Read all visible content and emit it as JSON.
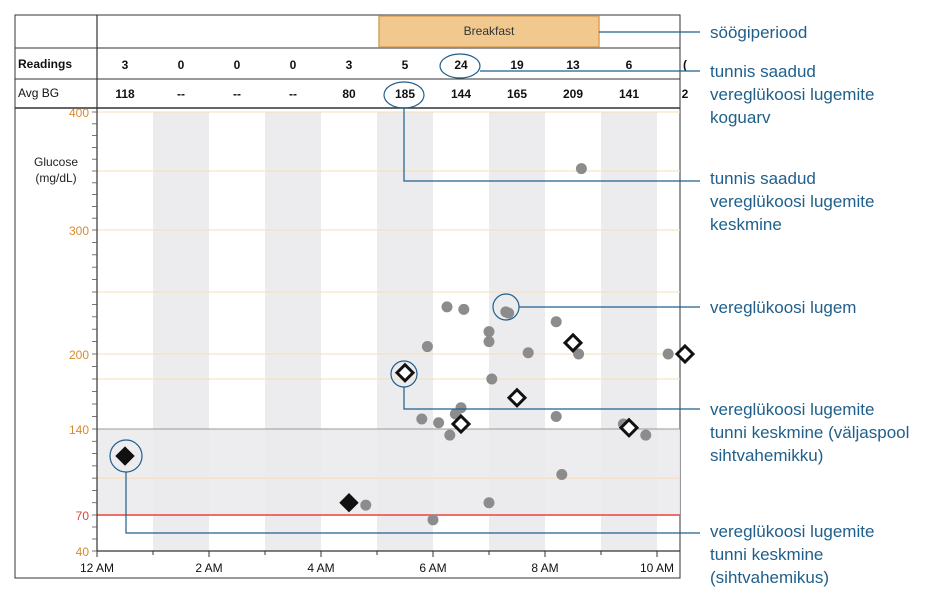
{
  "chart_data": {
    "type": "scatter",
    "meal_period": {
      "label": "Breakfast",
      "from_hour": 5,
      "to_hour": 9
    },
    "header_rows": {
      "readings_label": "Readings",
      "avg_label": "Avg BG",
      "readings": [
        "3",
        "0",
        "0",
        "0",
        "3",
        "5",
        "24",
        "19",
        "13",
        "6",
        "("
      ],
      "avg_bg": [
        "118",
        "--",
        "--",
        "--",
        "80",
        "185",
        "144",
        "165",
        "209",
        "141",
        "2"
      ]
    },
    "y_axis": {
      "title_line1": "Glucose",
      "title_line2": "(mg/dL)",
      "ticks": [
        "40",
        "70",
        "140",
        "200",
        "300",
        "400"
      ],
      "range": [
        40,
        400
      ]
    },
    "x_axis": {
      "ticks": [
        "12 AM",
        "2 AM",
        "4 AM",
        "6 AM",
        "8 AM",
        "10 AM"
      ],
      "range_hours": [
        0,
        10.5
      ]
    },
    "target_range": [
      70,
      140
    ],
    "low_threshold": 70,
    "readings": [
      [
        4.8,
        78
      ],
      [
        5.8,
        148
      ],
      [
        6.1,
        145
      ],
      [
        6.0,
        66
      ],
      [
        5.9,
        206
      ],
      [
        6.25,
        238
      ],
      [
        6.3,
        135
      ],
      [
        6.4,
        152
      ],
      [
        6.5,
        157
      ],
      [
        6.55,
        236
      ],
      [
        7.0,
        218
      ],
      [
        7.0,
        210
      ],
      [
        7.05,
        180
      ],
      [
        7.0,
        80
      ],
      [
        7.3,
        234
      ],
      [
        7.35,
        233
      ],
      [
        7.7,
        201
      ],
      [
        8.2,
        226
      ],
      [
        8.2,
        150
      ],
      [
        8.3,
        103
      ],
      [
        8.6,
        200
      ],
      [
        8.65,
        352
      ],
      [
        9.4,
        144
      ],
      [
        9.8,
        135
      ],
      [
        10.2,
        200
      ]
    ],
    "hourly_average_out_of_range": [
      [
        5.5,
        185
      ],
      [
        6.5,
        144
      ],
      [
        7.5,
        165
      ],
      [
        8.5,
        209
      ],
      [
        9.5,
        141
      ],
      [
        10.5,
        200
      ]
    ],
    "hourly_average_in_range": [
      [
        0.5,
        118
      ],
      [
        4.5,
        80
      ]
    ],
    "callouts": [
      {
        "label": "söögiperiood"
      },
      {
        "label": "tunnis saadud vereglükoosi lugemite koguarv"
      },
      {
        "label": "tunnis saadud vereglükoosi lugemite keskmine"
      },
      {
        "label": "vereglükoosi lugem"
      },
      {
        "label": "vereglükoosi lugemite tunni keskmine (väljaspool sihtvahemikku)"
      },
      {
        "label": "vereglükoosi lugemite tunni keskmine (sihtvahemikus)"
      }
    ],
    "colors": {
      "meal_fill": "#f1c98f",
      "meal_stroke": "#d9a35a",
      "target_band": "#ebebed",
      "low_line": "#e8443a",
      "y_tick_text": "#d98a2b",
      "reading_dot": "#8c8c8c",
      "callout": "#1f5f8b",
      "grid_orange": "#f6dcb8"
    }
  }
}
